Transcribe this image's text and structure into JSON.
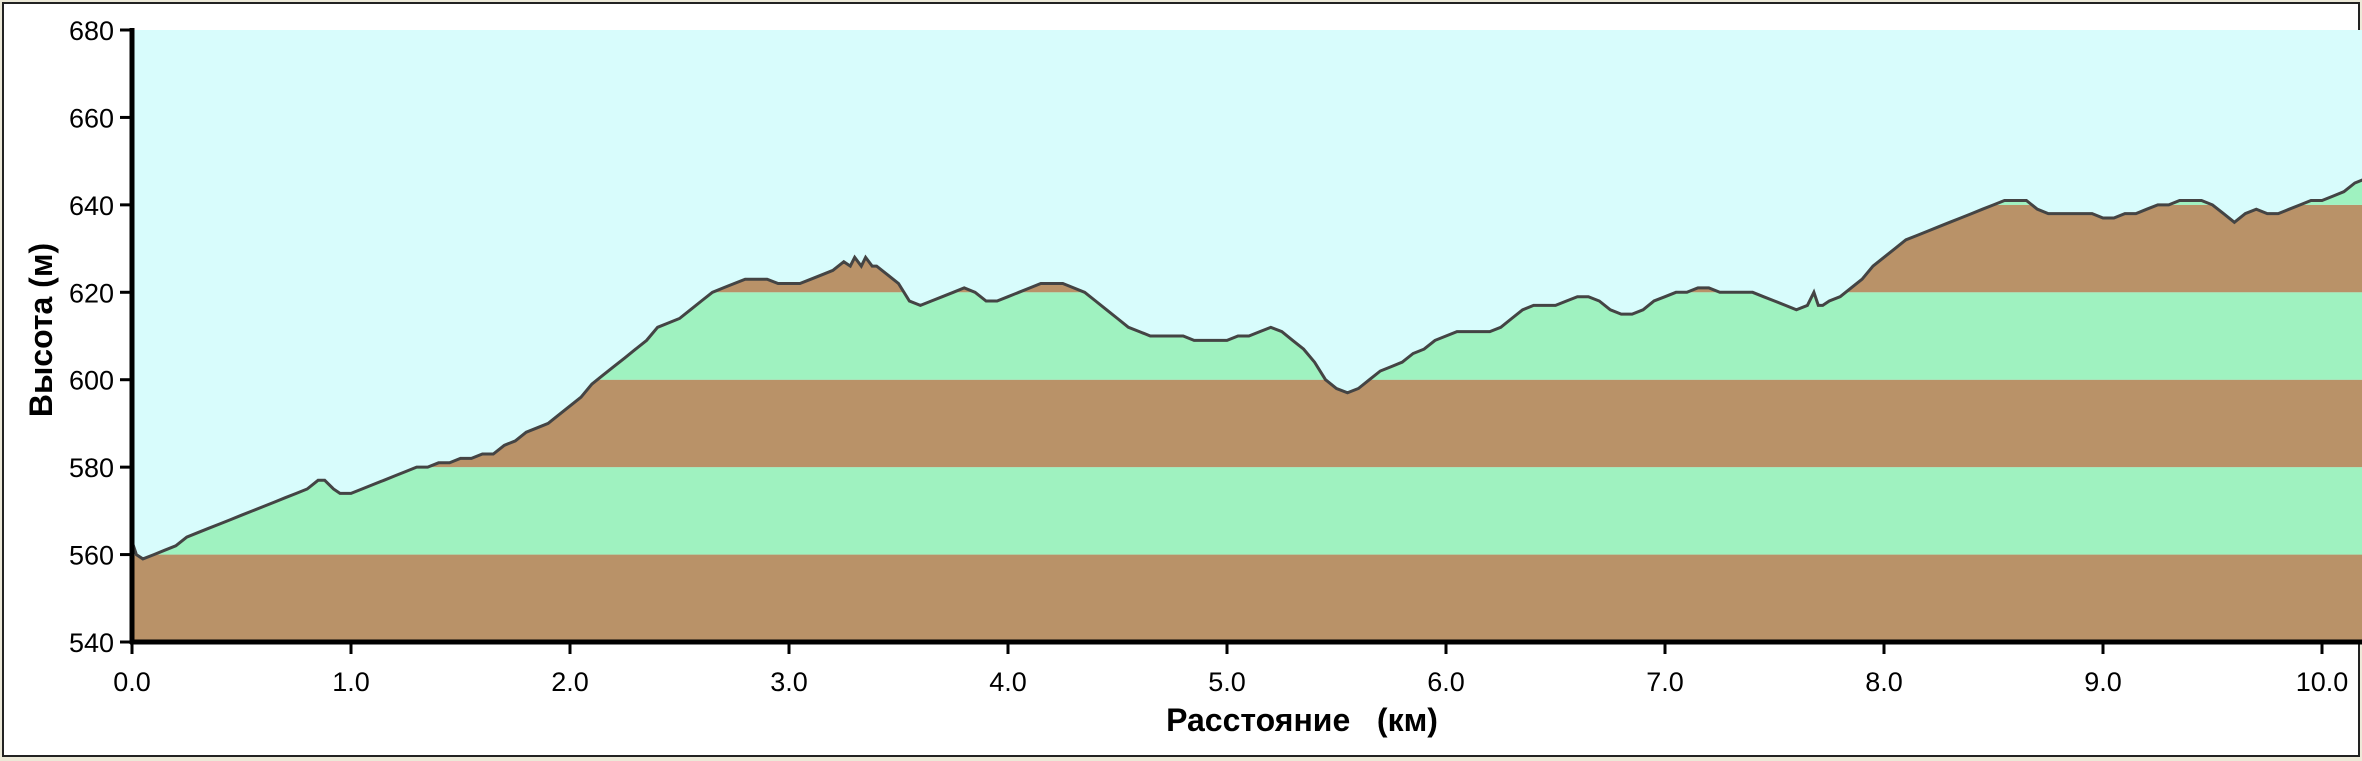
{
  "chart_data": {
    "type": "area",
    "xlabel": "Расстояние   (км)",
    "ylabel": "Высота (м)",
    "xlim": [
      0,
      10.0
    ],
    "ylim": [
      540,
      680
    ],
    "x_ticks": [
      "0.0",
      "1.0",
      "2.0",
      "3.0",
      "4.0",
      "5.0",
      "6.0",
      "7.0",
      "8.0",
      "9.0",
      "10.0"
    ],
    "y_ticks": [
      "540",
      "560",
      "580",
      "600",
      "620",
      "640",
      "660",
      "680"
    ],
    "band_step": 20,
    "grid": false,
    "legend": "none",
    "colors": {
      "sky": "#d8fcfc",
      "band_brown": "#b99268",
      "band_green": "#9ff2c0",
      "line": "#444444",
      "axis": "#000000"
    },
    "series": [
      {
        "x": [
          0.0,
          0.02,
          0.05,
          0.1,
          0.15,
          0.2,
          0.25,
          0.3,
          0.35,
          0.4,
          0.45,
          0.5,
          0.55,
          0.6,
          0.65,
          0.7,
          0.75,
          0.8,
          0.85,
          0.88,
          0.92,
          0.95,
          1.0,
          1.05,
          1.1,
          1.15,
          1.2,
          1.25,
          1.3,
          1.35,
          1.4,
          1.45,
          1.5,
          1.55,
          1.6,
          1.65,
          1.7,
          1.75,
          1.8,
          1.85,
          1.9,
          1.95,
          2.0,
          2.05,
          2.1,
          2.15,
          2.2,
          2.25,
          2.3,
          2.35,
          2.4,
          2.45,
          2.5,
          2.55,
          2.6,
          2.65,
          2.7,
          2.75,
          2.8,
          2.85,
          2.9,
          2.95,
          3.0,
          3.05,
          3.1,
          3.15,
          3.2,
          3.25,
          3.28,
          3.3,
          3.33,
          3.35,
          3.38,
          3.4,
          3.45,
          3.5,
          3.55,
          3.6,
          3.65,
          3.7,
          3.75,
          3.8,
          3.85,
          3.9,
          3.95,
          4.0,
          4.05,
          4.1,
          4.15,
          4.2,
          4.25,
          4.3,
          4.35,
          4.4,
          4.45,
          4.5,
          4.55,
          4.6,
          4.65,
          4.7,
          4.75,
          4.8,
          4.85,
          4.9,
          4.95,
          5.0,
          5.05,
          5.1,
          5.15,
          5.2,
          5.25,
          5.3,
          5.35,
          5.4,
          5.45,
          5.5,
          5.55,
          5.6,
          5.65,
          5.7,
          5.75,
          5.8,
          5.85,
          5.9,
          5.95,
          6.0,
          6.05,
          6.1,
          6.15,
          6.2,
          6.25,
          6.3,
          6.35,
          6.4,
          6.45,
          6.5,
          6.55,
          6.6,
          6.65,
          6.7,
          6.75,
          6.8,
          6.85,
          6.9,
          6.95,
          7.0,
          7.05,
          7.1,
          7.15,
          7.2,
          7.25,
          7.3,
          7.35,
          7.4,
          7.45,
          7.5,
          7.55,
          7.6,
          7.65,
          7.68,
          7.7,
          7.72,
          7.75,
          7.8,
          7.85,
          7.9,
          7.95,
          8.0,
          8.05,
          8.1,
          8.15,
          8.2,
          8.25,
          8.3,
          8.35,
          8.4,
          8.45,
          8.5,
          8.55,
          8.6,
          8.65,
          8.7,
          8.75,
          8.8,
          8.85,
          8.9,
          8.95,
          9.0,
          9.05,
          9.1,
          9.15,
          9.2,
          9.25,
          9.3,
          9.35,
          9.4,
          9.45,
          9.5,
          9.55,
          9.6,
          9.65,
          9.7,
          9.75,
          9.8,
          9.85,
          9.9,
          9.95,
          10.0,
          10.05,
          10.1,
          10.15,
          10.2
        ],
        "y": [
          563,
          560,
          559,
          560,
          561,
          562,
          564,
          565,
          566,
          567,
          568,
          569,
          570,
          571,
          572,
          573,
          574,
          575,
          577,
          577,
          575,
          574,
          574,
          575,
          576,
          577,
          578,
          579,
          580,
          580,
          581,
          581,
          582,
          582,
          583,
          583,
          585,
          586,
          588,
          589,
          590,
          592,
          594,
          596,
          599,
          601,
          603,
          605,
          607,
          609,
          612,
          613,
          614,
          616,
          618,
          620,
          621,
          622,
          623,
          623,
          623,
          622,
          622,
          622,
          623,
          624,
          625,
          627,
          626,
          628,
          626,
          628,
          626,
          626,
          624,
          622,
          618,
          617,
          618,
          619,
          620,
          621,
          620,
          618,
          618,
          619,
          620,
          621,
          622,
          622,
          622,
          621,
          620,
          618,
          616,
          614,
          612,
          611,
          610,
          610,
          610,
          610,
          609,
          609,
          609,
          609,
          610,
          610,
          611,
          612,
          611,
          609,
          607,
          604,
          600,
          598,
          597,
          598,
          600,
          602,
          603,
          604,
          606,
          607,
          609,
          610,
          611,
          611,
          611,
          611,
          612,
          614,
          616,
          617,
          617,
          617,
          618,
          619,
          619,
          618,
          616,
          615,
          615,
          616,
          618,
          619,
          620,
          620,
          621,
          621,
          620,
          620,
          620,
          620,
          619,
          618,
          617,
          616,
          617,
          620,
          617,
          617,
          618,
          619,
          621,
          623,
          626,
          628,
          630,
          632,
          633,
          634,
          635,
          636,
          637,
          638,
          639,
          640,
          641,
          641,
          641,
          639,
          638,
          638,
          638,
          638,
          638,
          637,
          637,
          638,
          638,
          639,
          640,
          640,
          641,
          641,
          641,
          640,
          638,
          636,
          638,
          639,
          638,
          638,
          639,
          640,
          641,
          641,
          642,
          643,
          645,
          646
        ]
      }
    ]
  }
}
